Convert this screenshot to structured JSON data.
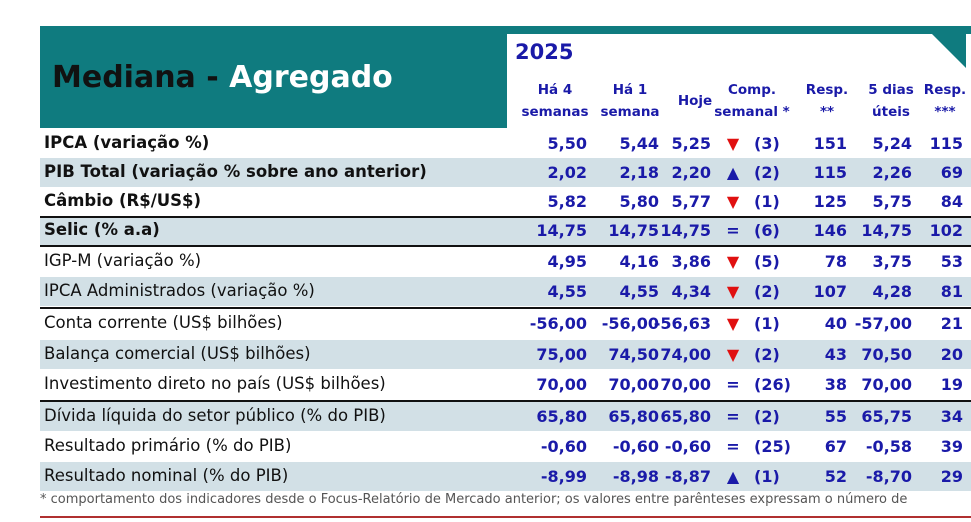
{
  "title": {
    "part1": "Mediana - ",
    "part2": "Agregado"
  },
  "year": "2025",
  "headers": {
    "ha4": [
      "Há 4",
      "semanas"
    ],
    "ha1": [
      "Há 1",
      "semana"
    ],
    "hoje": "Hoje",
    "comp": [
      "Comp.",
      "semanal *"
    ],
    "resp": [
      "Resp.",
      "**"
    ],
    "cinco": [
      "5 dias",
      "úteis"
    ],
    "resp5": [
      "Resp.",
      "***"
    ]
  },
  "rows": [
    {
      "label": "IPCA (variação %)",
      "bold": true,
      "ha4": "5,50",
      "ha1": "5,44",
      "hoje": "5,25",
      "trend": "down",
      "comp": "(3)",
      "resp": "151",
      "cinco": "5,24",
      "resp5": "115"
    },
    {
      "label": "PIB Total (variação % sobre ano anterior)",
      "bold": true,
      "ha4": "2,02",
      "ha1": "2,18",
      "hoje": "2,20",
      "trend": "up",
      "comp": "(2)",
      "resp": "115",
      "cinco": "2,26",
      "resp5": "69"
    },
    {
      "label": "Câmbio (R$/US$)",
      "bold": true,
      "ha4": "5,82",
      "ha1": "5,80",
      "hoje": "5,77",
      "trend": "down",
      "comp": "(1)",
      "resp": "125",
      "cinco": "5,75",
      "resp5": "84"
    },
    {
      "label": "Selic (% a.a)",
      "bold": true,
      "ha4": "14,75",
      "ha1": "14,75",
      "hoje": "14,75",
      "trend": "eq",
      "comp": "(6)",
      "resp": "146",
      "cinco": "14,75",
      "resp5": "102"
    },
    {
      "label": "IGP-M (variação %)",
      "bold": false,
      "ha4": "4,95",
      "ha1": "4,16",
      "hoje": "3,86",
      "trend": "down",
      "comp": "(5)",
      "resp": "78",
      "cinco": "3,75",
      "resp5": "53"
    },
    {
      "label": "IPCA Administrados (variação %)",
      "bold": false,
      "ha4": "4,55",
      "ha1": "4,55",
      "hoje": "4,34",
      "trend": "down",
      "comp": "(2)",
      "resp": "107",
      "cinco": "4,28",
      "resp5": "81"
    },
    {
      "label": "Conta corrente (US$ bilhões)",
      "bold": false,
      "ha4": "-56,00",
      "ha1": "-56,00",
      "hoje": "-56,63",
      "trend": "down",
      "comp": "(1)",
      "resp": "40",
      "cinco": "-57,00",
      "resp5": "21"
    },
    {
      "label": "Balança comercial (US$ bilhões)",
      "bold": false,
      "ha4": "75,00",
      "ha1": "74,50",
      "hoje": "74,00",
      "trend": "down",
      "comp": "(2)",
      "resp": "43",
      "cinco": "70,50",
      "resp5": "20"
    },
    {
      "label": "Investimento direto no país (US$ bilhões)",
      "bold": false,
      "ha4": "70,00",
      "ha1": "70,00",
      "hoje": "70,00",
      "trend": "eq",
      "comp": "(26)",
      "resp": "38",
      "cinco": "70,00",
      "resp5": "19"
    },
    {
      "label": "Dívida líquida do setor público (% do PIB)",
      "bold": false,
      "ha4": "65,80",
      "ha1": "65,80",
      "hoje": "65,80",
      "trend": "eq",
      "comp": "(2)",
      "resp": "55",
      "cinco": "65,75",
      "resp5": "34"
    },
    {
      "label": "Resultado primário (% do PIB)",
      "bold": false,
      "ha4": "-0,60",
      "ha1": "-0,60",
      "hoje": "-0,60",
      "trend": "eq",
      "comp": "(25)",
      "resp": "67",
      "cinco": "-0,58",
      "resp5": "39"
    },
    {
      "label": "Resultado nominal (% do PIB)",
      "bold": false,
      "ha4": "-8,99",
      "ha1": "-8,98",
      "hoje": "-8,87",
      "trend": "up",
      "comp": "(1)",
      "resp": "52",
      "cinco": "-8,70",
      "resp5": "29"
    }
  ],
  "trend_glyphs": {
    "down": "▼",
    "up": "▲",
    "eq": "="
  },
  "footnote": "* comportamento dos indicadores desde o Focus-Relatório de Mercado anterior; os valores entre parênteses expressam o número de"
}
